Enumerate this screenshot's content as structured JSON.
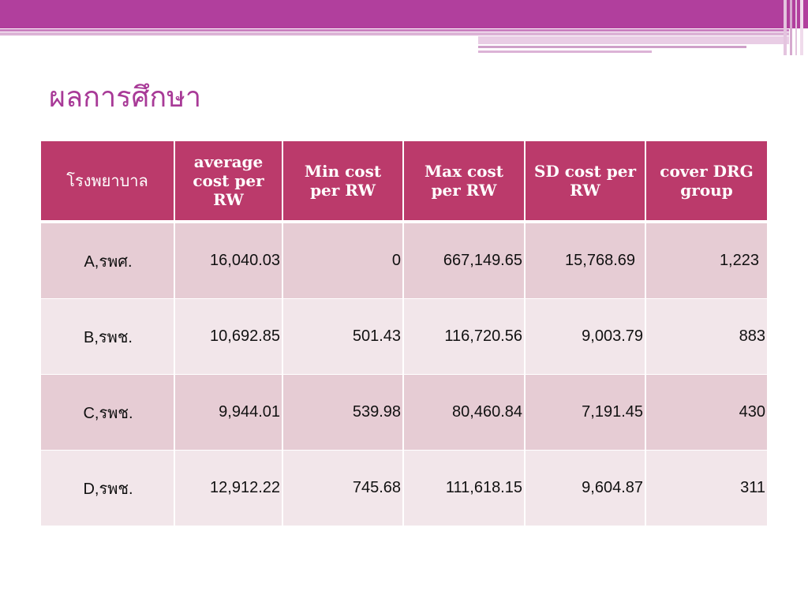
{
  "slide": {
    "title": "ผลการศึกษา",
    "accent_color": "#b13f9d",
    "header_color": "#bb3a6b"
  },
  "table": {
    "headers": [
      "โรงพยาบาล",
      "average cost per RW",
      "Min cost per RW",
      "Max cost per RW",
      "SD cost per RW",
      "cover DRG group"
    ],
    "rows": [
      [
        "A,รพศ.",
        "16,040.03",
        "0",
        "667,149.65",
        "15,768.69",
        "1,223"
      ],
      [
        "B,รพช.",
        "10,692.85",
        "501.43",
        "116,720.56",
        "9,003.79",
        "883"
      ],
      [
        "C,รพช.",
        "9,944.01",
        "539.98",
        "80,460.84",
        "7,191.45",
        "430"
      ],
      [
        "D,รพช.",
        "12,912.22",
        "745.68",
        "111,618.15",
        "9,604.87",
        "311"
      ]
    ]
  }
}
